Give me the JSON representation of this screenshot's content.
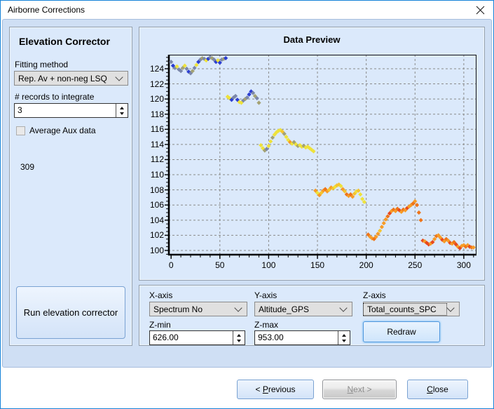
{
  "window": {
    "title": "Airborne Corrections"
  },
  "left_panel": {
    "heading": "Elevation Corrector",
    "fitting_method_label": "Fitting method",
    "fitting_method_value": "Rep. Av + non-neg LSQ",
    "records_label": "# records to integrate",
    "records_value": "3",
    "average_aux_label": "Average Aux data",
    "record_count": "309",
    "run_button_label": "Run elevation corrector"
  },
  "chart_panel": {
    "title": "Data Preview"
  },
  "chart_data": {
    "type": "scatter",
    "title": "Data Preview",
    "xlabel": "Spectrum No",
    "ylabel": "Altitude_GPS",
    "zlabel": "Total_counts_SPC",
    "xlim": [
      -3,
      313
    ],
    "ylim": [
      99.35,
      125.85
    ],
    "x_ticks": [
      0,
      50,
      100,
      150,
      200,
      250,
      300
    ],
    "y_ticks": [
      100,
      102,
      104,
      106,
      108,
      110,
      112,
      114,
      116,
      118,
      120,
      122,
      124
    ],
    "x_minor_step": 10,
    "y_minor_step": 0.5,
    "grid": "dashed",
    "legend": "none",
    "marker": "diamond",
    "point_colors": [
      "#2b3ed2",
      "#7b87aa",
      "#a4a273",
      "#eee23a",
      "#f5c42f",
      "#f79b26",
      "#ef7418",
      "#e8491d"
    ],
    "points": [
      [
        0,
        124.9,
        1
      ],
      [
        2,
        124.4,
        0
      ],
      [
        4,
        124.1,
        1
      ],
      [
        6,
        124.3,
        3
      ],
      [
        8,
        123.9,
        1
      ],
      [
        10,
        123.7,
        1
      ],
      [
        12,
        124.1,
        2
      ],
      [
        14,
        124.4,
        3
      ],
      [
        16,
        124.0,
        1
      ],
      [
        18,
        123.6,
        0
      ],
      [
        20,
        123.4,
        1
      ],
      [
        22,
        123.7,
        2
      ],
      [
        24,
        124.1,
        1
      ],
      [
        26,
        124.5,
        3
      ],
      [
        28,
        124.9,
        0
      ],
      [
        30,
        125.2,
        1
      ],
      [
        32,
        125.4,
        2
      ],
      [
        34,
        125.3,
        1
      ],
      [
        36,
        125.1,
        3
      ],
      [
        38,
        125.3,
        0
      ],
      [
        40,
        125.5,
        1
      ],
      [
        42,
        125.4,
        2
      ],
      [
        44,
        125.2,
        1
      ],
      [
        46,
        124.9,
        0
      ],
      [
        48,
        125.1,
        3
      ],
      [
        50,
        124.8,
        0
      ],
      [
        52,
        125.2,
        1
      ],
      [
        54,
        125.3,
        2
      ],
      [
        56,
        125.4,
        0
      ],
      [
        58,
        120.3,
        3
      ],
      [
        60,
        120.1,
        3
      ],
      [
        62,
        119.9,
        0
      ],
      [
        64,
        120.2,
        1
      ],
      [
        66,
        120.4,
        1
      ],
      [
        68,
        119.9,
        0
      ],
      [
        70,
        119.6,
        3
      ],
      [
        72,
        119.5,
        3
      ],
      [
        74,
        119.8,
        1
      ],
      [
        76,
        120.0,
        2
      ],
      [
        78,
        120.2,
        1
      ],
      [
        80,
        120.6,
        0
      ],
      [
        82,
        121.0,
        0
      ],
      [
        84,
        120.8,
        1
      ],
      [
        86,
        120.4,
        2
      ],
      [
        88,
        120.1,
        1
      ],
      [
        90,
        119.5,
        2
      ],
      [
        92,
        113.9,
        3
      ],
      [
        94,
        113.5,
        3
      ],
      [
        96,
        113.2,
        2
      ],
      [
        98,
        113.4,
        1
      ],
      [
        100,
        113.8,
        3
      ],
      [
        102,
        114.4,
        3
      ],
      [
        104,
        114.9,
        2
      ],
      [
        106,
        115.3,
        3
      ],
      [
        108,
        115.6,
        3
      ],
      [
        110,
        115.8,
        3
      ],
      [
        112,
        115.9,
        3
      ],
      [
        114,
        115.7,
        4
      ],
      [
        116,
        115.4,
        2
      ],
      [
        118,
        115.0,
        3
      ],
      [
        120,
        114.6,
        3
      ],
      [
        122,
        114.3,
        5
      ],
      [
        124,
        114.1,
        3
      ],
      [
        126,
        114.3,
        2
      ],
      [
        128,
        114.0,
        3
      ],
      [
        130,
        113.8,
        2
      ],
      [
        132,
        113.9,
        3
      ],
      [
        134,
        113.7,
        3
      ],
      [
        136,
        113.8,
        2
      ],
      [
        138,
        113.6,
        3
      ],
      [
        140,
        113.7,
        3
      ],
      [
        142,
        113.5,
        3
      ],
      [
        144,
        113.3,
        3
      ],
      [
        146,
        113.1,
        3
      ],
      [
        148,
        107.9,
        5
      ],
      [
        150,
        107.6,
        3
      ],
      [
        152,
        107.3,
        5
      ],
      [
        154,
        107.6,
        4
      ],
      [
        156,
        107.9,
        5
      ],
      [
        158,
        108.1,
        6
      ],
      [
        160,
        107.8,
        5
      ],
      [
        162,
        108.0,
        4
      ],
      [
        164,
        108.3,
        5
      ],
      [
        166,
        108.2,
        4
      ],
      [
        168,
        108.4,
        3
      ],
      [
        170,
        108.6,
        4
      ],
      [
        172,
        108.7,
        4
      ],
      [
        174,
        108.5,
        3
      ],
      [
        176,
        108.1,
        5
      ],
      [
        178,
        107.8,
        4
      ],
      [
        180,
        107.4,
        6
      ],
      [
        182,
        107.2,
        5
      ],
      [
        184,
        107.4,
        6
      ],
      [
        186,
        107.1,
        5
      ],
      [
        188,
        107.5,
        4
      ],
      [
        190,
        107.8,
        3
      ],
      [
        192,
        107.9,
        4
      ],
      [
        194,
        107.4,
        3
      ],
      [
        196,
        106.8,
        3
      ],
      [
        198,
        106.4,
        3
      ],
      [
        202,
        102.1,
        6
      ],
      [
        204,
        101.8,
        5
      ],
      [
        206,
        101.6,
        5
      ],
      [
        208,
        101.5,
        6
      ],
      [
        210,
        101.8,
        5
      ],
      [
        212,
        102.2,
        5
      ],
      [
        214,
        102.6,
        4
      ],
      [
        216,
        103.1,
        5
      ],
      [
        218,
        103.6,
        5
      ],
      [
        220,
        104.1,
        5
      ],
      [
        222,
        104.5,
        6
      ],
      [
        224,
        104.9,
        7
      ],
      [
        226,
        105.2,
        5
      ],
      [
        228,
        105.4,
        6
      ],
      [
        230,
        105.2,
        5
      ],
      [
        232,
        105.5,
        6
      ],
      [
        234,
        105.3,
        7
      ],
      [
        236,
        105.1,
        5
      ],
      [
        238,
        105.4,
        6
      ],
      [
        240,
        105.3,
        5
      ],
      [
        242,
        105.6,
        7
      ],
      [
        244,
        105.8,
        5
      ],
      [
        246,
        106.0,
        5
      ],
      [
        248,
        106.2,
        6
      ],
      [
        250,
        106.5,
        5
      ],
      [
        252,
        106.0,
        6
      ],
      [
        254,
        105.0,
        6
      ],
      [
        256,
        104.0,
        6
      ],
      [
        258,
        101.3,
        7
      ],
      [
        260,
        101.2,
        5
      ],
      [
        262,
        101.0,
        7
      ],
      [
        264,
        100.8,
        7
      ],
      [
        266,
        100.9,
        5
      ],
      [
        268,
        101.1,
        7
      ],
      [
        270,
        101.5,
        5
      ],
      [
        272,
        101.9,
        6
      ],
      [
        274,
        102.0,
        5
      ],
      [
        276,
        101.7,
        5
      ],
      [
        278,
        101.4,
        7
      ],
      [
        280,
        101.2,
        5
      ],
      [
        282,
        101.5,
        6
      ],
      [
        284,
        101.3,
        5
      ],
      [
        286,
        101.0,
        7
      ],
      [
        288,
        100.9,
        5
      ],
      [
        290,
        101.1,
        6
      ],
      [
        292,
        100.8,
        7
      ],
      [
        294,
        100.5,
        5
      ],
      [
        296,
        100.3,
        7
      ],
      [
        298,
        100.6,
        5
      ],
      [
        300,
        100.7,
        5
      ],
      [
        302,
        100.5,
        6
      ],
      [
        304,
        100.7,
        5
      ],
      [
        306,
        100.5,
        7
      ],
      [
        308,
        100.4,
        6
      ],
      [
        310,
        100.4,
        5
      ]
    ]
  },
  "controls": {
    "x_axis_label": "X-axis",
    "x_axis_value": "Spectrum No",
    "y_axis_label": "Y-axis",
    "y_axis_value": "Altitude_GPS",
    "z_axis_label": "Z-axis",
    "z_axis_value": "Total_counts_SPC",
    "z_min_label": "Z-min",
    "z_min_value": "626.00",
    "z_max_label": "Z-max",
    "z_max_value": "953.00",
    "redraw_label": "Redraw"
  },
  "footer": {
    "previous": {
      "pre": "< ",
      "key": "P",
      "post": "revious"
    },
    "next": {
      "pre": "",
      "key": "N",
      "post": "ext >"
    },
    "close": {
      "pre": "",
      "key": "C",
      "post": "lose"
    }
  }
}
